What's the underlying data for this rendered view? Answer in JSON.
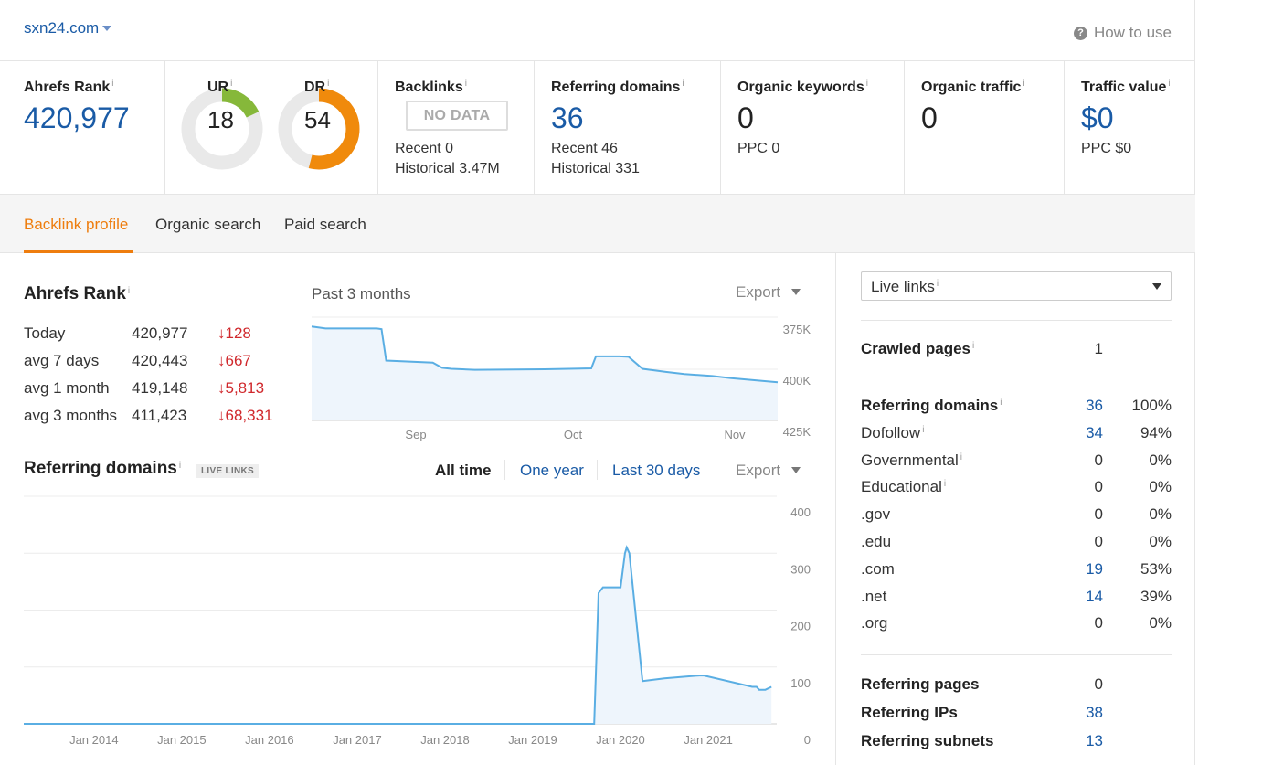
{
  "header": {
    "domain": "sxn24.com",
    "how_to_use": "How to use"
  },
  "metrics": {
    "ahrefs_rank": {
      "label": "Ahrefs Rank",
      "sup": "i",
      "value": "420,977"
    },
    "ur": {
      "label": "UR",
      "sup": "i",
      "value": "18",
      "score": 18,
      "color": "#86b83a"
    },
    "dr": {
      "label": "DR",
      "sup": "i",
      "value": "54",
      "score": 54,
      "color": "#f08a0c"
    },
    "backlinks": {
      "label": "Backlinks",
      "sup": "i",
      "badge": "NO DATA",
      "recent": "Recent 0",
      "historical": "Historical 3.47M"
    },
    "referring_domains": {
      "label": "Referring domains",
      "sup": "i",
      "value": "36",
      "recent": "Recent 46",
      "historical": "Historical 331"
    },
    "organic_keywords": {
      "label": "Organic keywords",
      "sup": "i",
      "value": "0",
      "ppc": "PPC 0"
    },
    "organic_traffic": {
      "label": "Organic traffic",
      "sup": "i",
      "value": "0"
    },
    "traffic_value": {
      "label": "Traffic value",
      "sup": "i",
      "value": "$0",
      "ppc": "PPC $0"
    }
  },
  "tabs": [
    {
      "label": "Backlink profile",
      "active": true
    },
    {
      "label": "Organic search",
      "active": false
    },
    {
      "label": "Paid search",
      "active": false
    }
  ],
  "rank_section": {
    "title": "Ahrefs Rank",
    "sup": "i",
    "period": "Past 3 months",
    "export": "Export",
    "rows": [
      {
        "label": "Today",
        "value": "420,977",
        "delta": "↓128"
      },
      {
        "label": "avg 7 days",
        "value": "420,443",
        "delta": "↓667"
      },
      {
        "label": "avg 1 month",
        "value": "419,148",
        "delta": "↓5,813"
      },
      {
        "label": "avg 3 months",
        "value": "411,423",
        "delta": "↓68,331"
      }
    ]
  },
  "ref_section": {
    "title": "Referring domains",
    "sup": "i",
    "badge": "LIVE LINKS",
    "ranges": [
      "All time",
      "One year",
      "Last 30 days"
    ],
    "export": "Export"
  },
  "chart_data": [
    {
      "type": "area",
      "title": "Ahrefs Rank",
      "x_ticks": [
        "Sep",
        "Oct",
        "Nov"
      ],
      "y_ticks": [
        "375K",
        "400K",
        "425K"
      ],
      "ylim": [
        425000,
        375000
      ],
      "x": [
        0,
        3,
        8,
        14,
        15,
        16,
        26,
        28,
        30,
        35,
        50,
        60,
        61,
        63,
        66,
        68,
        71,
        76,
        80,
        86,
        90,
        100
      ],
      "values": [
        376500,
        377500,
        377500,
        377500,
        377800,
        393000,
        394000,
        396500,
        397000,
        397500,
        397200,
        396800,
        391000,
        391000,
        391000,
        391200,
        397000,
        398500,
        399500,
        400500,
        401500,
        403500
      ]
    },
    {
      "type": "area",
      "title": "Referring domains",
      "x_ticks": [
        "Jan 2014",
        "Jan 2015",
        "Jan 2016",
        "Jan 2017",
        "Jan 2018",
        "Jan 2019",
        "Jan 2020",
        "Jan 2021"
      ],
      "y_ticks": [
        "0",
        "100",
        "200",
        "300",
        "400"
      ],
      "ylim": [
        0,
        400
      ],
      "x": [
        2013.2,
        2019.7,
        2019.75,
        2019.8,
        2019.95,
        2020.0,
        2020.05,
        2020.07,
        2020.1,
        2020.25,
        2020.5,
        2020.9,
        2020.95,
        2021.5,
        2021.55,
        2021.58,
        2021.65,
        2021.72
      ],
      "values": [
        0,
        0,
        230,
        240,
        240,
        240,
        300,
        310,
        300,
        75,
        80,
        85,
        85,
        65,
        65,
        60,
        60,
        65
      ]
    }
  ],
  "sidebar": {
    "select_label": "Live links",
    "select_sup": "i",
    "crawled": {
      "label": "Crawled pages",
      "sup": "i",
      "value": "1"
    },
    "domains": [
      {
        "label": "Referring domains",
        "sup": "i",
        "value": "36",
        "pct": "100%",
        "bold": true,
        "link": true
      },
      {
        "label": "Dofollow",
        "sup": "i",
        "value": "34",
        "pct": "94%",
        "bold": false,
        "link": true
      },
      {
        "label": "Governmental",
        "sup": "i",
        "value": "0",
        "pct": "0%",
        "bold": false,
        "link": false
      },
      {
        "label": "Educational",
        "sup": "i",
        "value": "0",
        "pct": "0%",
        "bold": false,
        "link": false
      },
      {
        "label": ".gov",
        "sup": "",
        "value": "0",
        "pct": "0%",
        "bold": false,
        "link": false
      },
      {
        "label": ".edu",
        "sup": "",
        "value": "0",
        "pct": "0%",
        "bold": false,
        "link": false
      },
      {
        "label": ".com",
        "sup": "",
        "value": "19",
        "pct": "53%",
        "bold": false,
        "link": true
      },
      {
        "label": ".net",
        "sup": "",
        "value": "14",
        "pct": "39%",
        "bold": false,
        "link": true
      },
      {
        "label": ".org",
        "sup": "",
        "value": "0",
        "pct": "0%",
        "bold": false,
        "link": false
      }
    ],
    "bottom": [
      {
        "label": "Referring pages",
        "value": "0",
        "link": false
      },
      {
        "label": "Referring IPs",
        "value": "38",
        "link": true
      },
      {
        "label": "Referring subnets",
        "value": "13",
        "link": true
      }
    ]
  }
}
